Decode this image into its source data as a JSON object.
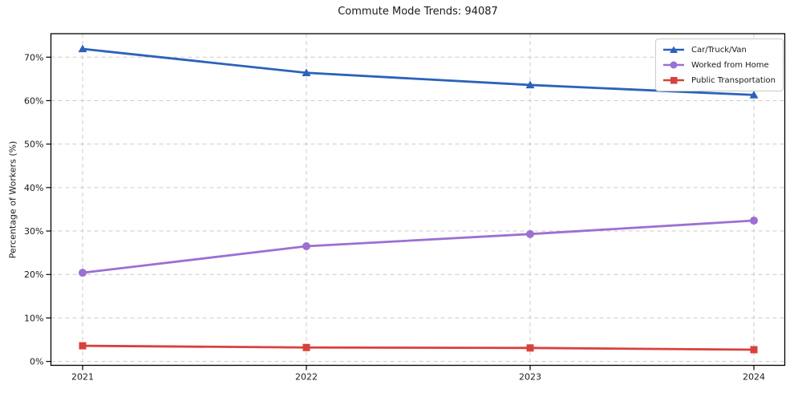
{
  "chart_data": {
    "type": "line",
    "title": "Commute Mode Trends: 94087",
    "xlabel": "",
    "ylabel": "Percentage of Workers (%)",
    "x": [
      "2021",
      "2022",
      "2023",
      "2024"
    ],
    "series": [
      {
        "name": "Car/Truck/Van",
        "color": "#2b62ba",
        "marker": "triangle-up-icon",
        "values": [
          71.9,
          66.4,
          63.6,
          61.3
        ]
      },
      {
        "name": "Worked from Home",
        "color": "#9b70d2",
        "marker": "circle-icon",
        "values": [
          20.4,
          26.5,
          29.3,
          32.4
        ]
      },
      {
        "name": "Public Transportation",
        "color": "#d8413e",
        "marker": "square-icon",
        "values": [
          3.6,
          3.2,
          3.1,
          2.7
        ]
      }
    ],
    "yticks": [
      0,
      10,
      20,
      30,
      40,
      50,
      60,
      70
    ],
    "ytick_labels": [
      "0%",
      "10%",
      "20%",
      "30%",
      "40%",
      "50%",
      "60%",
      "70%"
    ],
    "ylim": [
      -0.9,
      75.4
    ],
    "grid": true,
    "grid_style": "dashed",
    "legend_position": "upper right",
    "colors": {
      "grid": "#cbcbcb",
      "spine": "#000000",
      "text": "#1a1a1a",
      "background": "#ffffff"
    }
  }
}
